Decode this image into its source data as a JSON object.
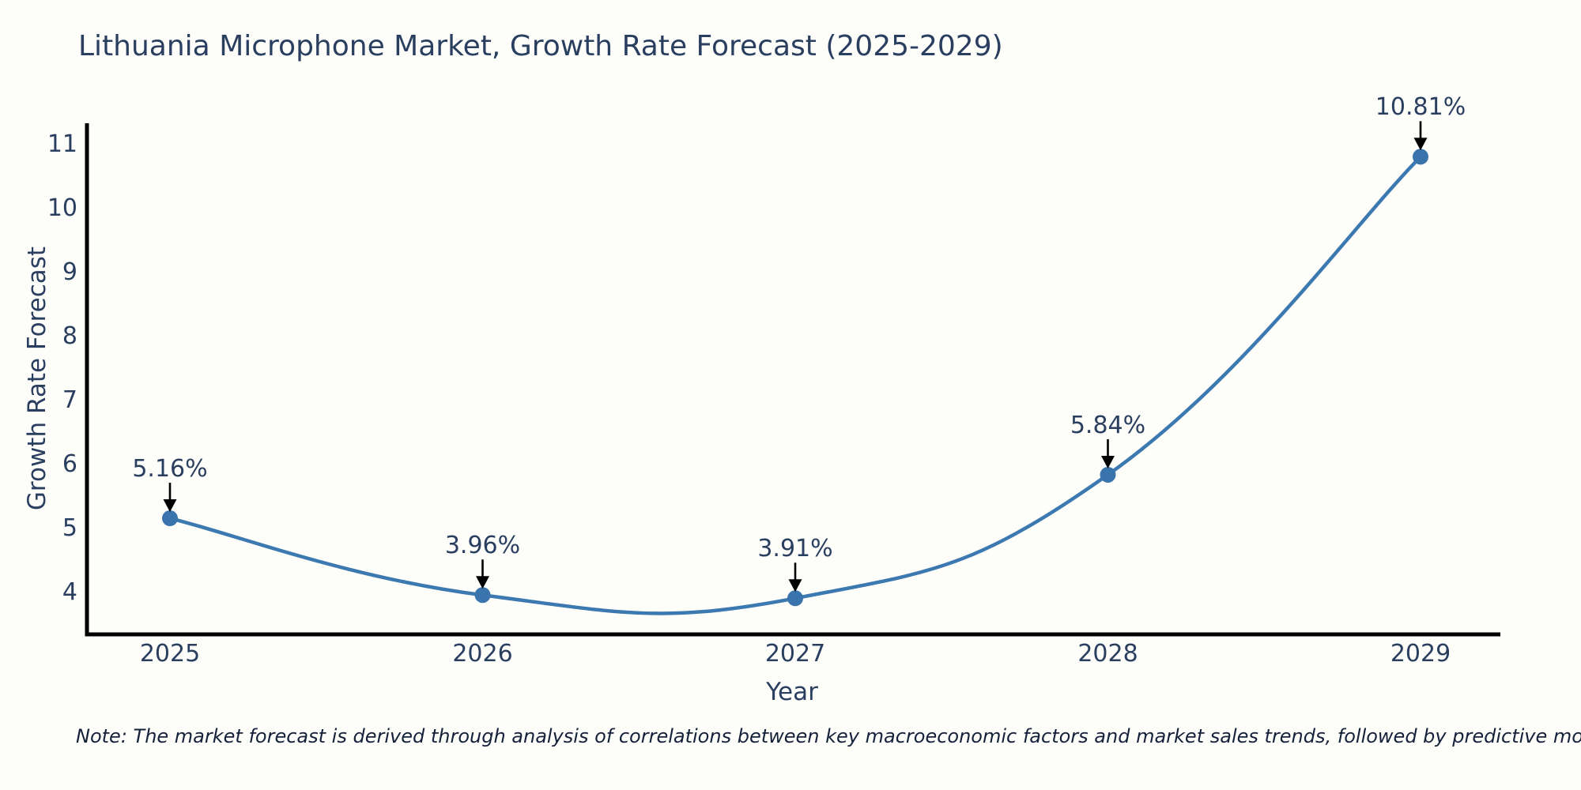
{
  "note": "Note: The market forecast is derived through analysis of correlations between key macroeconomic factors and market sales trends, followed by predictive modeling to project future sales",
  "chart_data": {
    "type": "line",
    "title": "Lithuania Microphone Market, Growth Rate Forecast (2025-2029)",
    "xlabel": "Year",
    "ylabel": "Growth Rate Forecast",
    "x": [
      2025,
      2026,
      2027,
      2028,
      2029
    ],
    "x_labels": [
      "2025",
      "2026",
      "2027",
      "2028",
      "2029"
    ],
    "values": [
      5.16,
      3.96,
      3.91,
      5.84,
      10.81
    ],
    "point_labels": [
      "5.16%",
      "3.96%",
      "3.91%",
      "5.84%",
      "10.81%"
    ],
    "yticks": [
      4,
      5,
      6,
      7,
      8,
      9,
      10,
      11
    ],
    "ytick_labels": [
      "4",
      "5",
      "6",
      "7",
      "8",
      "9",
      "10",
      "11"
    ],
    "ylim": [
      3.3,
      11.45
    ],
    "line_shape": "spline",
    "grid": false,
    "legend": "none",
    "colors": {
      "line": "#3c79b0",
      "marker": "#3a74ac",
      "axis": "#000000",
      "annotation_arrow": "#000000",
      "text": "#2a3f5f",
      "background": "#fdfdfa"
    }
  }
}
